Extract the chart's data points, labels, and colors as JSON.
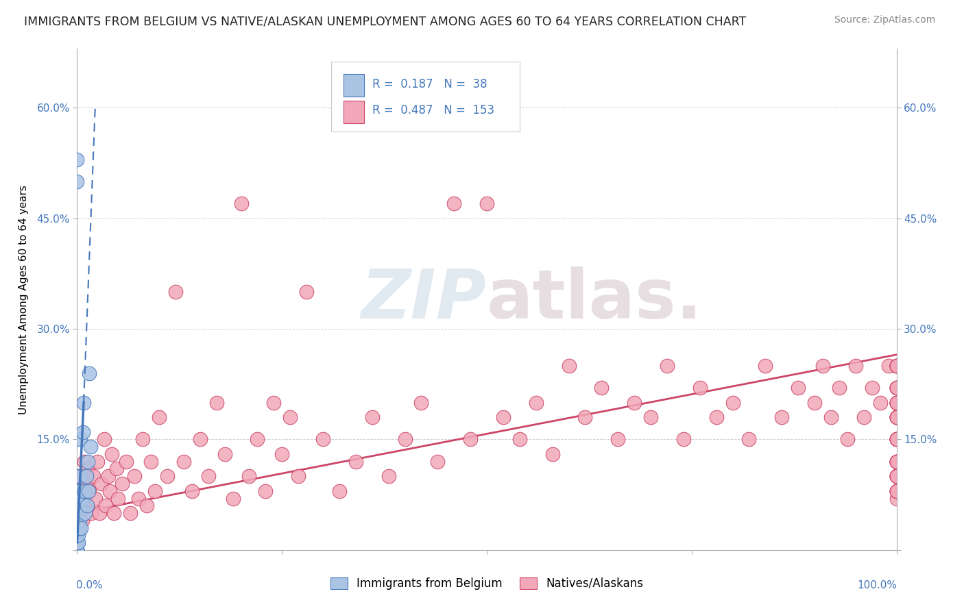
{
  "title": "IMMIGRANTS FROM BELGIUM VS NATIVE/ALASKAN UNEMPLOYMENT AMONG AGES 60 TO 64 YEARS CORRELATION CHART",
  "source": "Source: ZipAtlas.com",
  "ylabel": "Unemployment Among Ages 60 to 64 years",
  "legend_r_belgium": "0.187",
  "legend_n_belgium": "38",
  "legend_r_native": "0.487",
  "legend_n_native": "153",
  "legend_label_belgium": "Immigrants from Belgium",
  "legend_label_native": "Natives/Alaskans",
  "belgium_color": "#aac4e4",
  "native_color": "#f2a8b8",
  "trend_belgium_color": "#4477bb",
  "trend_native_color": "#cc4466",
  "background_color": "#ffffff",
  "xlim": [
    0,
    1.0
  ],
  "ylim": [
    0,
    0.68
  ],
  "ytick_vals": [
    0.0,
    0.15,
    0.3,
    0.45,
    0.6
  ],
  "ytick_labels": [
    "",
    "15.0%",
    "30.0%",
    "45.0%",
    "60.0%"
  ],
  "native_trend_x0": 0.0,
  "native_trend_x1": 1.0,
  "native_trend_y0": 0.05,
  "native_trend_y1": 0.265,
  "belgium_trend_solid_x0": 0.0,
  "belgium_trend_solid_x1": 0.008,
  "belgium_trend_solid_y0": 0.01,
  "belgium_trend_solid_y1": 0.2,
  "belgium_trend_dash_x0": 0.008,
  "belgium_trend_dash_x1": 0.022,
  "belgium_trend_dash_y0": 0.2,
  "belgium_trend_dash_y1": 0.6
}
